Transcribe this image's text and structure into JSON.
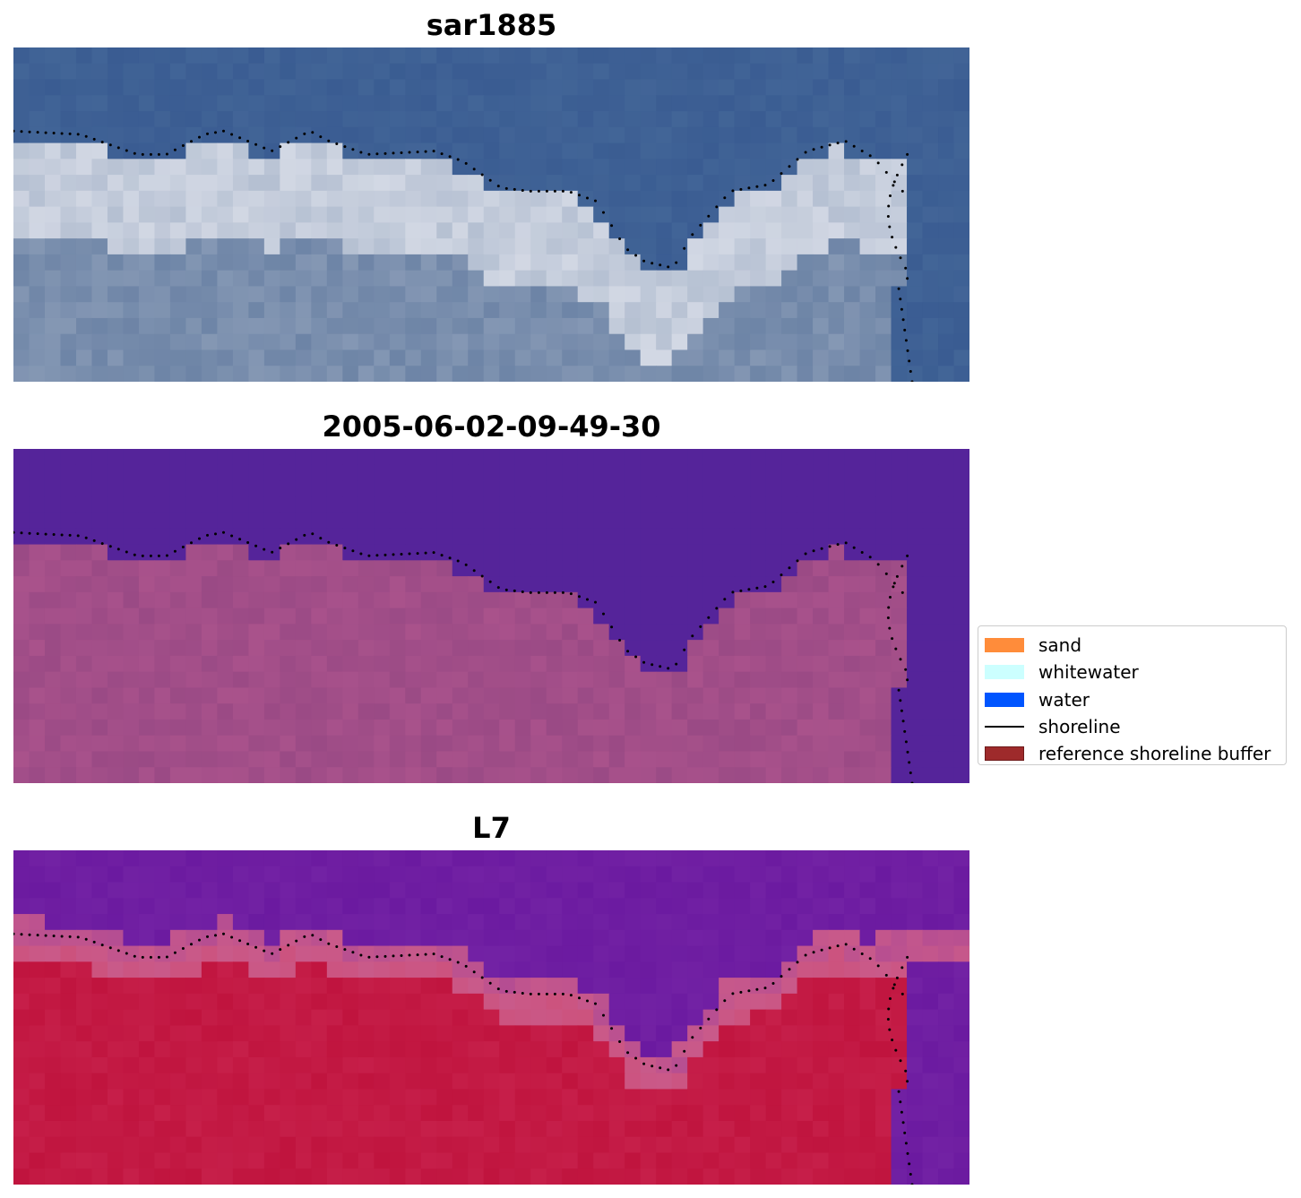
{
  "panels": [
    {
      "title": "sar1885",
      "kind": "rgb"
    },
    {
      "title": "2005-06-02-09-49-30",
      "kind": "classified"
    },
    {
      "title": "L7",
      "kind": "index"
    }
  ],
  "legend": {
    "items": [
      {
        "label": "sand",
        "color": "#ff8c3a",
        "shape": "patch"
      },
      {
        "label": "whitewater",
        "color": "#ccffff",
        "shape": "patch"
      },
      {
        "label": "water",
        "color": "#0055ff",
        "shape": "patch"
      },
      {
        "label": "shoreline",
        "color": "#000000",
        "shape": "line"
      },
      {
        "label": "reference shoreline buffer",
        "color": "#9e2a2b",
        "shape": "patch",
        "edge": "#6e1a1a"
      }
    ]
  },
  "colors": {
    "sea_rgb": "#3a5c92",
    "surf_rgb": "#b5c0d2",
    "land_rgb": "#6d84a6",
    "class_water": "#55249a",
    "class_land": "#9a4a85",
    "index_water": "#6b1aa0",
    "index_land": "#c0143e",
    "index_edge": "#c95a8a",
    "shoreline_dots": "#000000"
  }
}
